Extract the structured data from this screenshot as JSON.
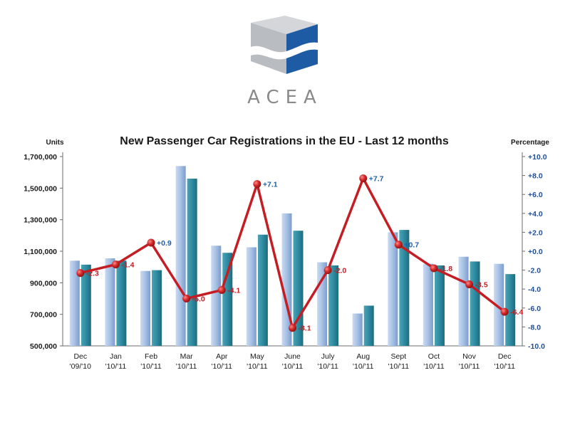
{
  "header": {
    "logo_text": "ACEA"
  },
  "chart_data": {
    "type": "bar",
    "title": "New Passenger Car Registrations in the EU - Last 12 months",
    "left_axis_label": "Units",
    "right_axis_label": "Percentage",
    "categories": [
      [
        "Dec",
        "'09/'10"
      ],
      [
        "Jan",
        "'10/'11"
      ],
      [
        "Feb",
        "'10/'11"
      ],
      [
        "Mar",
        "'10/'11"
      ],
      [
        "Apr",
        "'10/'11"
      ],
      [
        "May",
        "'10/'11"
      ],
      [
        "June",
        "'10/'11"
      ],
      [
        "July",
        "'10/'11"
      ],
      [
        "Aug",
        "'10/'11"
      ],
      [
        "Sept",
        "'10/'11"
      ],
      [
        "Oct",
        "'10/'11"
      ],
      [
        "Nov",
        "'10/'11"
      ],
      [
        "Dec",
        "'10/'11"
      ]
    ],
    "series": [
      {
        "axis": "left",
        "kind": "bar",
        "color": "#a9c4e8",
        "values": [
          1040000,
          1055000,
          975000,
          1640000,
          1135000,
          1125000,
          1340000,
          1030000,
          705000,
          1220000,
          1020000,
          1065000,
          1020000
        ]
      },
      {
        "axis": "left",
        "kind": "bar",
        "color": "#2f8ba0",
        "values": [
          1015000,
          1040000,
          980000,
          1560000,
          1090000,
          1205000,
          1230000,
          1010000,
          755000,
          1235000,
          1010000,
          1035000,
          955000
        ]
      },
      {
        "axis": "right",
        "kind": "line",
        "color": "#c41e24",
        "values": [
          -2.3,
          -1.4,
          0.9,
          -5.0,
          -4.1,
          7.1,
          -8.1,
          -2.0,
          7.7,
          0.7,
          -1.8,
          -3.5,
          -6.4
        ],
        "labels": [
          "-2.3",
          "-1.4",
          "+0.9",
          "-5.0",
          "-4.1",
          "+7.1",
          "-8.1",
          "-2.0",
          "+7.7",
          "+0.7",
          "-1.8",
          "-3.5",
          "-6.4"
        ]
      }
    ],
    "y_left": {
      "min": 500000,
      "max": 1700000,
      "ticks": [
        500000,
        700000,
        900000,
        1100000,
        1300000,
        1500000,
        1700000
      ],
      "tick_labels": [
        "500,000",
        "700,000",
        "900,000",
        "1,100,000",
        "1,300,000",
        "1,500,000",
        "1,700,000"
      ]
    },
    "y_right": {
      "min": -10,
      "max": 10,
      "ticks": [
        -10,
        -8,
        -6,
        -4,
        -2,
        0,
        2,
        4,
        6,
        8,
        10
      ],
      "tick_labels": [
        "-10.0",
        "-8.0",
        "-6.0",
        "-4.0",
        "-2.0",
        "+0.0",
        "+2.0",
        "+4.0",
        "+6.0",
        "+8.0",
        "+10.0"
      ]
    },
    "colors": {
      "positive_label": "#1f5fa8",
      "negative_label": "#c41e24",
      "right_axis_text": "#1f4e9c"
    },
    "grid": false,
    "legend": "none"
  }
}
